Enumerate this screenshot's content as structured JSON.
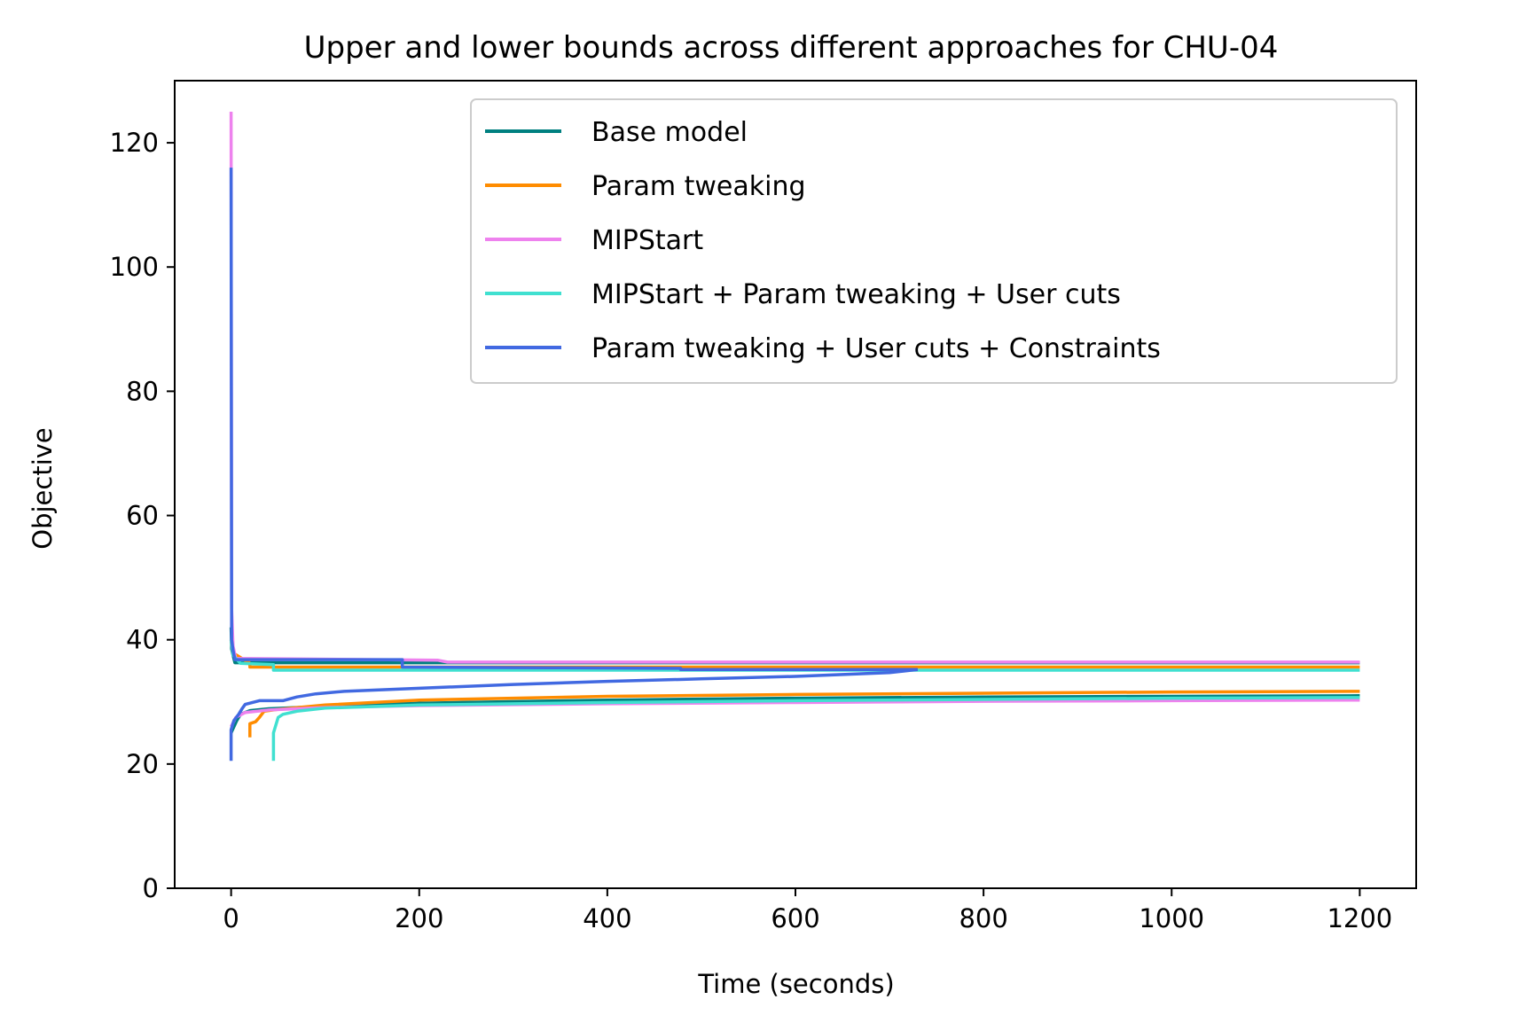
{
  "chart_data": {
    "type": "line",
    "title": "Upper and lower bounds across different approaches for CHU-04",
    "xlabel": "Time (seconds)",
    "ylabel": "Objective",
    "xlim": [
      -60,
      1260
    ],
    "ylim": [
      0,
      130
    ],
    "xticks": [
      0,
      200,
      400,
      600,
      800,
      1000,
      1200
    ],
    "yticks": [
      0,
      20,
      40,
      60,
      80,
      100,
      120
    ],
    "grid": false,
    "legend_position": "upper right",
    "series": [
      {
        "name": "Base model",
        "color": "#008080",
        "upper_bound": [
          [
            0,
            42
          ],
          [
            0.5,
            38.5
          ],
          [
            2,
            37.5
          ],
          [
            4,
            36.3
          ],
          [
            1200,
            36.3
          ]
        ],
        "lower_bound": [
          [
            0,
            25
          ],
          [
            3,
            26
          ],
          [
            6,
            27
          ],
          [
            10,
            28
          ],
          [
            20,
            28.6
          ],
          [
            40,
            28.9
          ],
          [
            100,
            29.3
          ],
          [
            200,
            29.8
          ],
          [
            400,
            30.3
          ],
          [
            600,
            30.6
          ],
          [
            800,
            30.8
          ],
          [
            1000,
            30.9
          ],
          [
            1200,
            31
          ]
        ]
      },
      {
        "name": "Param tweaking",
        "color": "#ff8c00",
        "upper_bound": [
          [
            0,
            40
          ],
          [
            2,
            37.8
          ],
          [
            5,
            37.6
          ],
          [
            20,
            36.2
          ],
          [
            20,
            35.6
          ],
          [
            1200,
            35.6
          ]
        ],
        "lower_bound": [
          [
            20,
            24.3
          ],
          [
            20,
            26.5
          ],
          [
            26,
            26.8
          ],
          [
            30,
            27.5
          ],
          [
            35,
            28.5
          ],
          [
            50,
            28.8
          ],
          [
            100,
            29.5
          ],
          [
            200,
            30.3
          ],
          [
            400,
            30.9
          ],
          [
            600,
            31.2
          ],
          [
            800,
            31.4
          ],
          [
            1000,
            31.6
          ],
          [
            1200,
            31.7
          ]
        ]
      },
      {
        "name": "MIPStart",
        "color": "#ee82ee",
        "upper_bound": [
          [
            0,
            125
          ],
          [
            0.5,
            45
          ],
          [
            2,
            39
          ],
          [
            5,
            37
          ],
          [
            220,
            36.7
          ],
          [
            230,
            36.4
          ],
          [
            1200,
            36.4
          ]
        ],
        "lower_bound": [
          [
            0,
            26
          ],
          [
            5,
            27.5
          ],
          [
            15,
            28.3
          ],
          [
            40,
            28.7
          ],
          [
            100,
            29.1
          ],
          [
            200,
            29.4
          ],
          [
            400,
            29.7
          ],
          [
            600,
            29.9
          ],
          [
            800,
            30.1
          ],
          [
            1000,
            30.2
          ],
          [
            1200,
            30.3
          ]
        ]
      },
      {
        "name": "MIPStart + Param tweaking + User cuts",
        "color": "#40e0d0",
        "upper_bound": [
          [
            0,
            40
          ],
          [
            2,
            37.5
          ],
          [
            10,
            36.2
          ],
          [
            45,
            36
          ],
          [
            45,
            35.1
          ],
          [
            1200,
            35.1
          ]
        ],
        "lower_bound": [
          [
            45,
            20.5
          ],
          [
            45,
            25
          ],
          [
            50,
            27.5
          ],
          [
            55,
            28
          ],
          [
            70,
            28.5
          ],
          [
            100,
            29
          ],
          [
            200,
            29.5
          ],
          [
            400,
            29.9
          ],
          [
            600,
            30.2
          ],
          [
            800,
            30.4
          ],
          [
            1000,
            30.6
          ],
          [
            1200,
            30.7
          ]
        ]
      },
      {
        "name": "Param tweaking + User cuts + Constraints",
        "color": "#4169e1",
        "upper_bound": [
          [
            0,
            116
          ],
          [
            0.5,
            40
          ],
          [
            2,
            38.3
          ],
          [
            4,
            36.8
          ],
          [
            182,
            36.8
          ],
          [
            182,
            35.6
          ],
          [
            340,
            35.5
          ],
          [
            478,
            35.4
          ],
          [
            478,
            35.2
          ],
          [
            730,
            35.2
          ]
        ],
        "lower_bound": [
          [
            0,
            20.5
          ],
          [
            0,
            25.5
          ],
          [
            3,
            27
          ],
          [
            8,
            28
          ],
          [
            12,
            29
          ],
          [
            15,
            29.6
          ],
          [
            25,
            30
          ],
          [
            30,
            30.2
          ],
          [
            55,
            30.2
          ],
          [
            70,
            30.8
          ],
          [
            90,
            31.3
          ],
          [
            120,
            31.7
          ],
          [
            200,
            32.2
          ],
          [
            300,
            32.8
          ],
          [
            400,
            33.3
          ],
          [
            500,
            33.7
          ],
          [
            600,
            34.1
          ],
          [
            700,
            34.7
          ],
          [
            730,
            35.2
          ]
        ]
      }
    ]
  }
}
